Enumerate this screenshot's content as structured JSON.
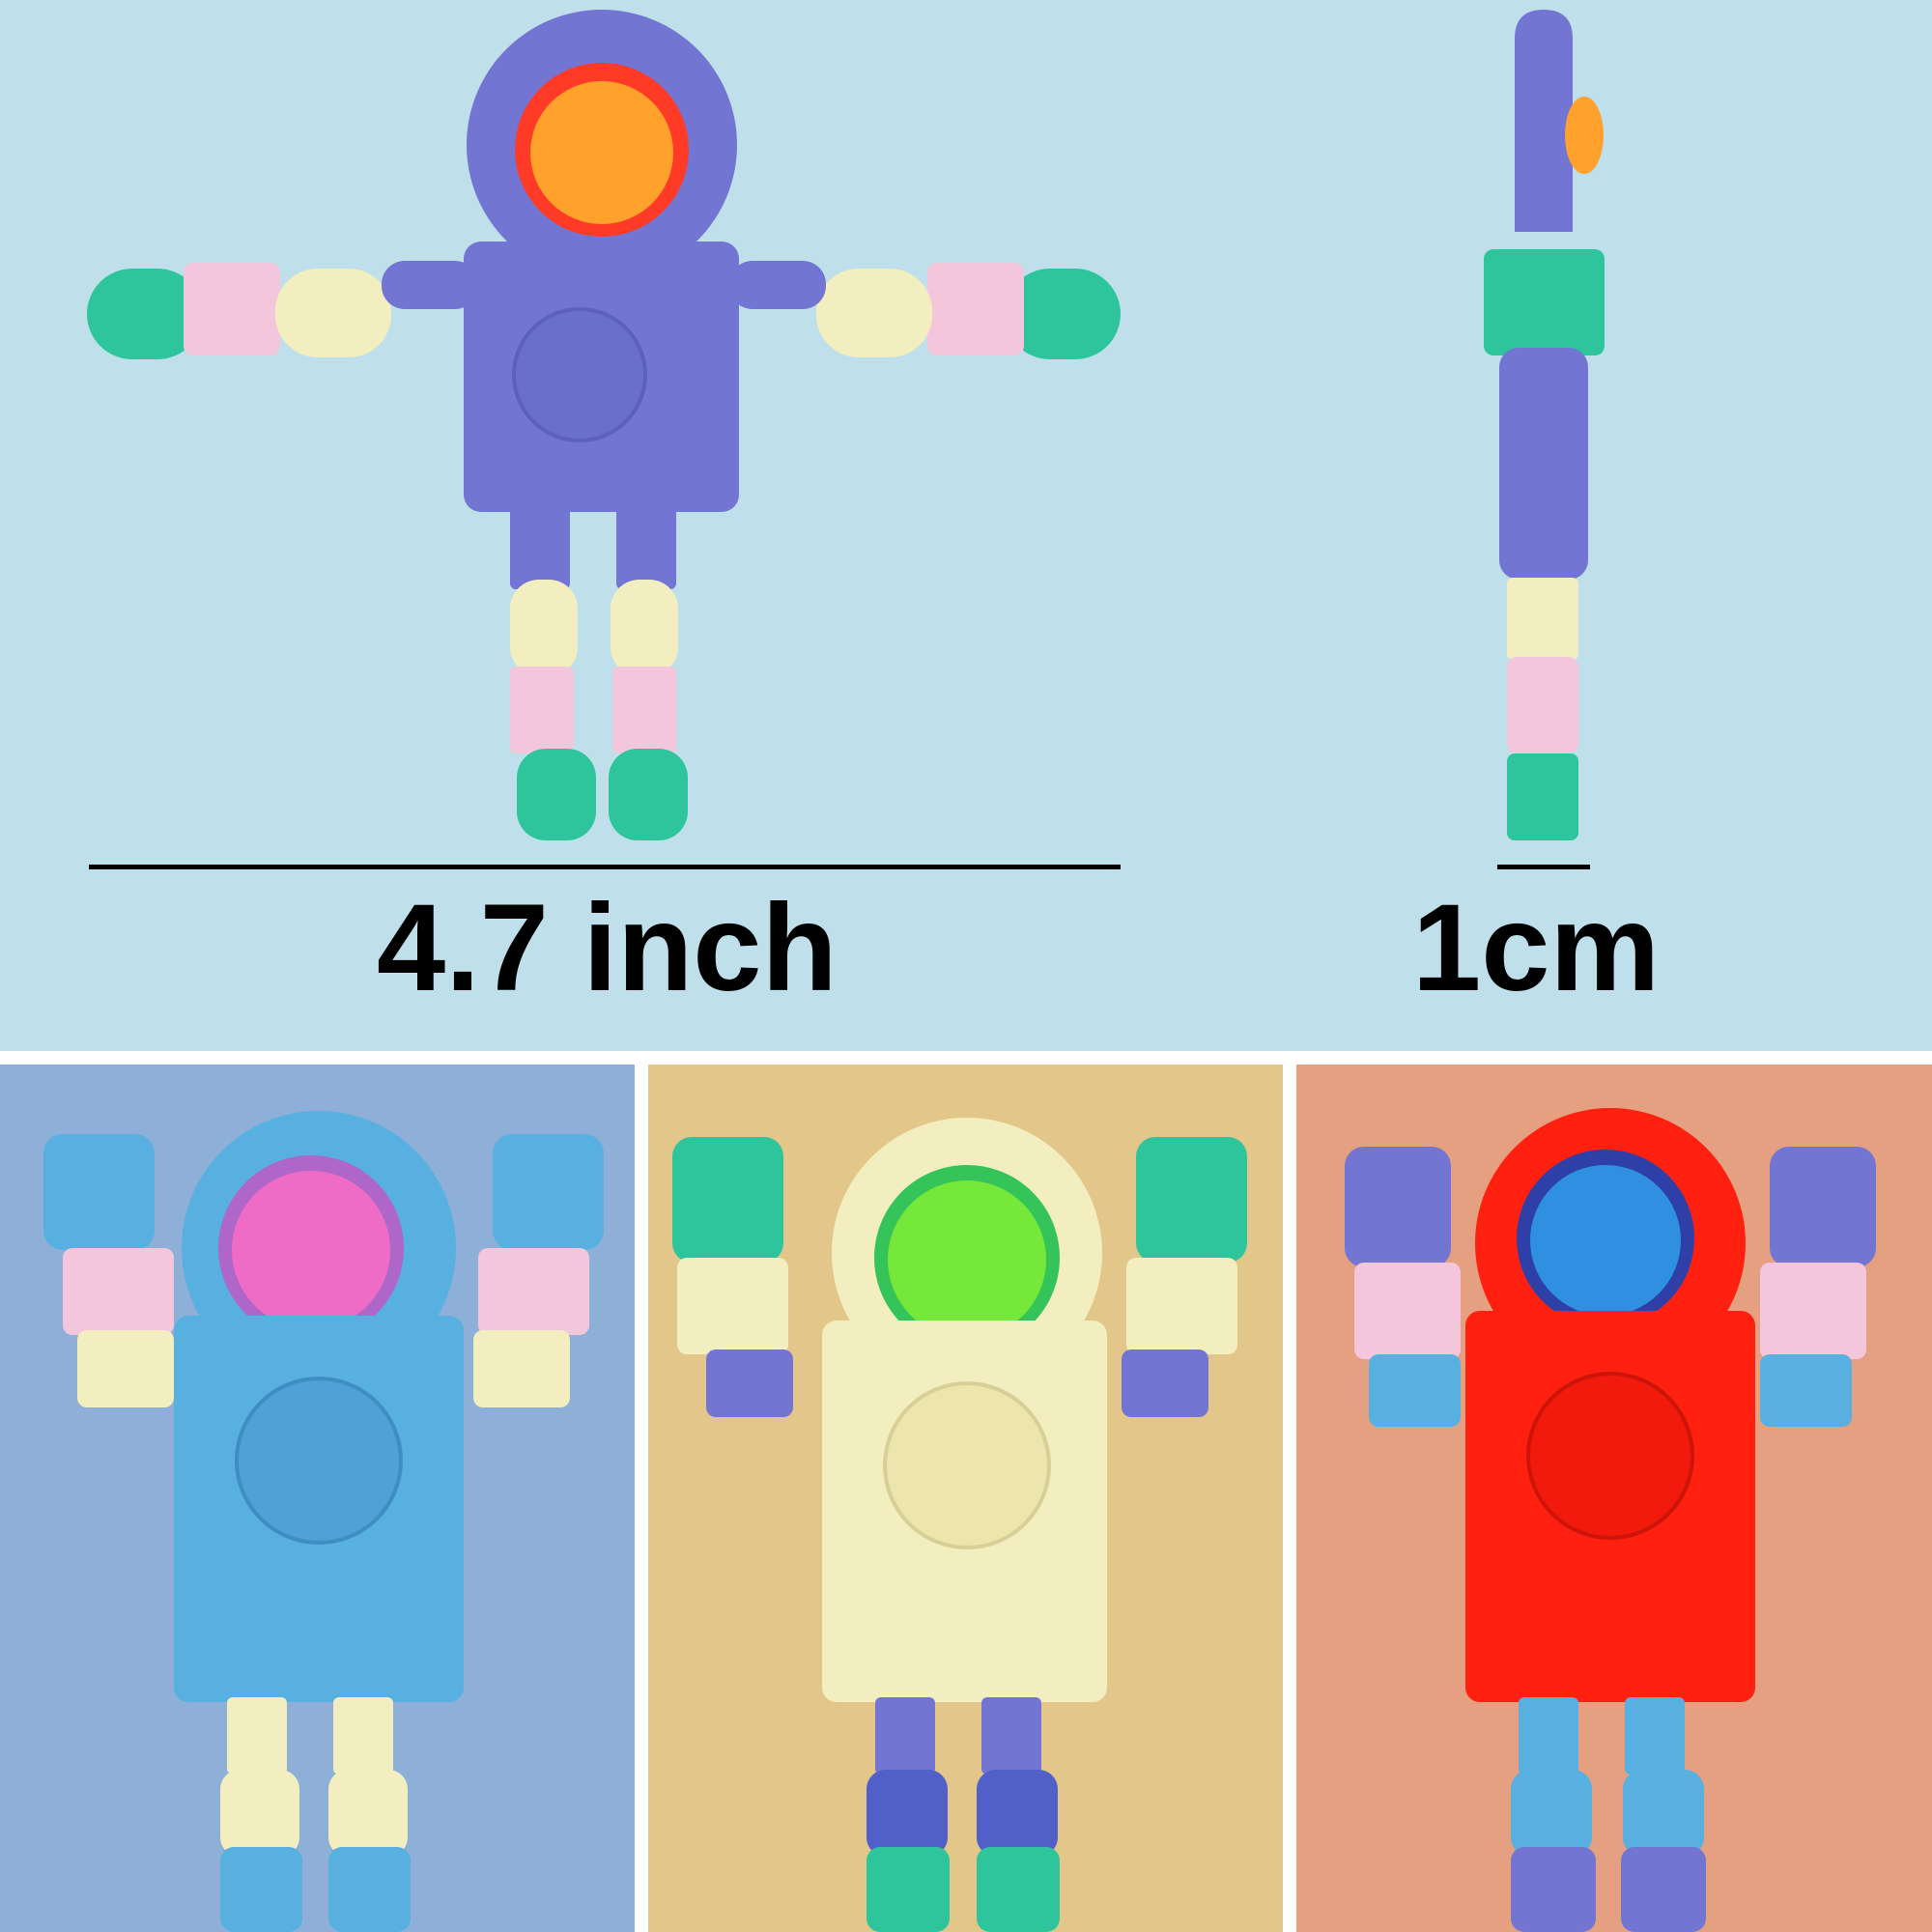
{
  "measurements": {
    "width_label": "4.7 inch",
    "thickness_label": "1cm"
  },
  "colors": {
    "top_background": "#bfe0ea",
    "blue_background": "#8eb0d8",
    "yellow_background": "#e2c68a",
    "orange_background": "#e4a080",
    "purple_toy": "#7276d2",
    "blue_toy": "#58b0e0",
    "yellow_toy": "#f3eec0",
    "red_toy": "#ff2010"
  },
  "variants": [
    {
      "color": "purple",
      "pose": "arms-out"
    },
    {
      "color": "blue",
      "pose": "arms-up"
    },
    {
      "color": "yellow",
      "pose": "arms-up"
    },
    {
      "color": "red",
      "pose": "arms-up"
    }
  ]
}
